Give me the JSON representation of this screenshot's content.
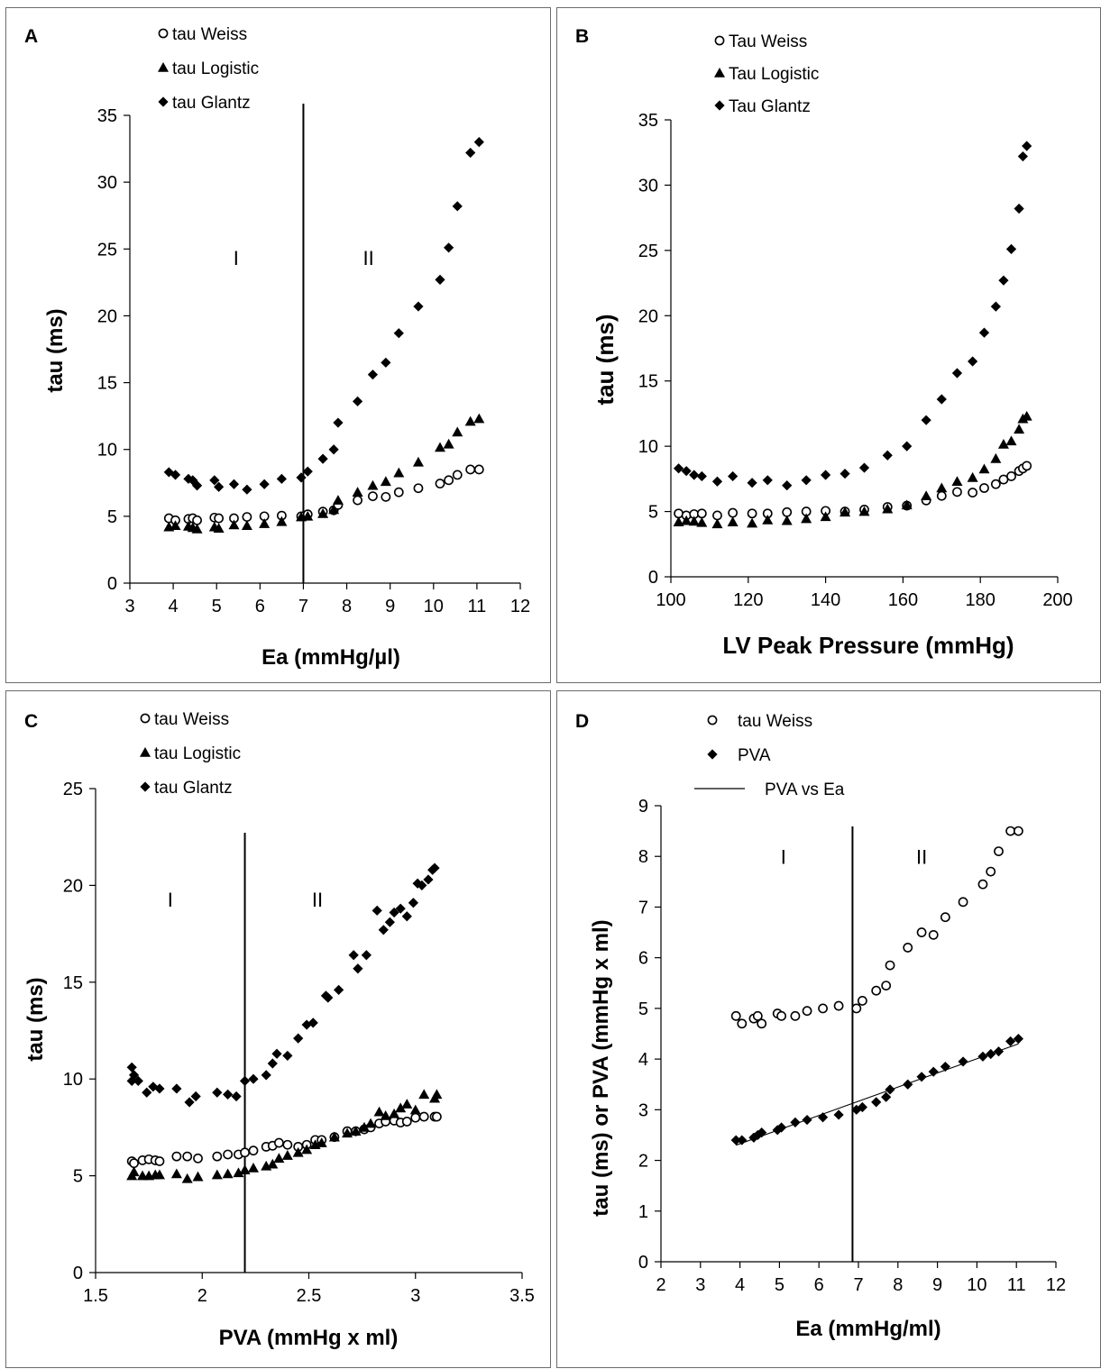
{
  "charts": [
    {
      "type": "scatter",
      "panel_label": "A",
      "xlabel": "Ea (mmHg/µl)",
      "ylabel": "tau (ms)",
      "xlim": [
        3,
        12
      ],
      "ylim": [
        0,
        35
      ],
      "xticks": [
        "3",
        "4",
        "5",
        "6",
        "7",
        "8",
        "9",
        "10",
        "11",
        "12"
      ],
      "yticks": [
        "0",
        "5",
        "10",
        "15",
        "20",
        "25",
        "30",
        "35"
      ],
      "vline_x": 7,
      "regions": [
        {
          "label": "I",
          "x": 5.45,
          "y": 23.8
        },
        {
          "label": "II",
          "x": 8.5,
          "y": 23.8
        }
      ],
      "legend_position": "top-left",
      "series": [
        {
          "name": "tau Weiss",
          "marker": "open-circle",
          "x": [
            3.9,
            4.05,
            4.35,
            4.45,
            4.55,
            4.95,
            5.05,
            5.4,
            5.7,
            6.1,
            6.5,
            6.95,
            7.1,
            7.45,
            7.7,
            7.8,
            8.25,
            8.6,
            8.9,
            9.2,
            9.65,
            10.15,
            10.35,
            10.55,
            10.85,
            11.05
          ],
          "y": [
            4.85,
            4.7,
            4.8,
            4.85,
            4.7,
            4.9,
            4.85,
            4.85,
            4.95,
            5.0,
            5.05,
            5.0,
            5.15,
            5.35,
            5.45,
            5.85,
            6.2,
            6.5,
            6.45,
            6.8,
            7.1,
            7.45,
            7.7,
            8.1,
            8.5,
            8.5
          ]
        },
        {
          "name": "tau Logistic",
          "marker": "triangle",
          "x": [
            3.9,
            4.05,
            4.35,
            4.45,
            4.55,
            4.95,
            5.05,
            5.4,
            5.7,
            6.1,
            6.5,
            6.95,
            7.1,
            7.45,
            7.7,
            7.8,
            8.25,
            8.6,
            8.9,
            9.2,
            9.65,
            10.15,
            10.35,
            10.55,
            10.85,
            11.05
          ],
          "y": [
            4.2,
            4.3,
            4.25,
            4.15,
            4.05,
            4.2,
            4.1,
            4.35,
            4.3,
            4.45,
            4.6,
            4.95,
            5.0,
            5.2,
            5.5,
            6.2,
            6.8,
            7.3,
            7.6,
            8.25,
            9.05,
            10.15,
            10.4,
            11.3,
            12.1,
            12.3
          ]
        },
        {
          "name": "tau Glantz",
          "marker": "diamond",
          "x": [
            3.9,
            4.05,
            4.35,
            4.45,
            4.55,
            4.95,
            5.05,
            5.4,
            5.7,
            6.1,
            6.5,
            6.95,
            7.1,
            7.45,
            7.7,
            7.8,
            8.25,
            8.6,
            8.9,
            9.2,
            9.65,
            10.15,
            10.35,
            10.55,
            10.85,
            11.05
          ],
          "y": [
            8.3,
            8.1,
            7.8,
            7.7,
            7.3,
            7.7,
            7.2,
            7.4,
            7.0,
            7.4,
            7.8,
            7.9,
            8.35,
            9.3,
            10.0,
            12.0,
            13.6,
            15.6,
            16.5,
            18.7,
            20.7,
            22.7,
            25.1,
            28.2,
            32.2,
            33.0
          ]
        }
      ]
    },
    {
      "type": "scatter",
      "panel_label": "B",
      "xlabel": "LV Peak Pressure (mmHg)",
      "ylabel": "tau (ms)",
      "xlim": [
        100,
        200
      ],
      "ylim": [
        0,
        35
      ],
      "xticks": [
        "100",
        "120",
        "140",
        "160",
        "180",
        "200"
      ],
      "yticks": [
        "0",
        "5",
        "10",
        "15",
        "20",
        "25",
        "30",
        "35"
      ],
      "legend_position": "top-left",
      "series": [
        {
          "name": "Tau Weiss",
          "marker": "open-circle",
          "x": [
            102,
            104,
            106,
            108,
            112,
            116,
            121,
            125,
            130,
            135,
            140,
            145,
            150,
            156,
            161,
            166,
            170,
            174,
            178,
            181,
            184,
            186,
            188,
            190,
            191,
            192
          ],
          "y": [
            4.85,
            4.7,
            4.8,
            4.85,
            4.7,
            4.9,
            4.85,
            4.85,
            4.95,
            5.0,
            5.05,
            5.0,
            5.15,
            5.35,
            5.45,
            5.85,
            6.2,
            6.5,
            6.45,
            6.8,
            7.1,
            7.45,
            7.7,
            8.1,
            8.3,
            8.5
          ]
        },
        {
          "name": "Tau Logistic",
          "marker": "triangle",
          "x": [
            102,
            104,
            106,
            108,
            112,
            116,
            121,
            125,
            130,
            135,
            140,
            145,
            150,
            156,
            161,
            166,
            170,
            174,
            178,
            181,
            184,
            186,
            188,
            190,
            191,
            192
          ],
          "y": [
            4.2,
            4.3,
            4.25,
            4.15,
            4.05,
            4.2,
            4.1,
            4.35,
            4.3,
            4.45,
            4.6,
            4.95,
            5.0,
            5.2,
            5.5,
            6.2,
            6.8,
            7.3,
            7.6,
            8.25,
            9.05,
            10.15,
            10.4,
            11.3,
            12.1,
            12.3
          ]
        },
        {
          "name": "Tau Glantz",
          "marker": "diamond",
          "x": [
            102,
            104,
            106,
            108,
            112,
            116,
            121,
            125,
            130,
            135,
            140,
            145,
            150,
            156,
            161,
            166,
            170,
            174,
            178,
            181,
            184,
            186,
            188,
            190,
            191,
            192
          ],
          "y": [
            8.3,
            8.1,
            7.8,
            7.7,
            7.3,
            7.7,
            7.2,
            7.4,
            7.0,
            7.4,
            7.8,
            7.9,
            8.35,
            9.3,
            10.0,
            12.0,
            13.6,
            15.6,
            16.5,
            18.7,
            20.7,
            22.7,
            25.1,
            28.2,
            32.2,
            33.0
          ]
        }
      ]
    },
    {
      "type": "scatter",
      "panel_label": "C",
      "xlabel": "PVA (mmHg x ml)",
      "ylabel": "tau (ms)",
      "xlim": [
        1.5,
        3.5
      ],
      "ylim": [
        0,
        25
      ],
      "xticks": [
        "1.5",
        "2",
        "2.5",
        "3",
        "3.5"
      ],
      "yticks": [
        "0",
        "5",
        "10",
        "15",
        "20",
        "25"
      ],
      "vline_x": 2.2,
      "regions": [
        {
          "label": "I",
          "x": 1.85,
          "y": 18.9
        },
        {
          "label": "II",
          "x": 2.54,
          "y": 18.9
        }
      ],
      "legend_position": "top-left",
      "series": [
        {
          "name": "tau Weiss",
          "marker": "open-circle",
          "x": [
            1.67,
            1.68,
            1.72,
            1.75,
            1.78,
            1.8,
            1.88,
            1.93,
            1.98,
            2.07,
            2.12,
            2.17,
            2.2,
            2.24,
            2.3,
            2.33,
            2.36,
            2.4,
            2.45,
            2.49,
            2.53,
            2.56,
            2.62,
            2.68,
            2.72,
            2.76,
            2.79,
            2.83,
            2.86,
            2.9,
            2.93,
            2.96,
            3.0,
            3.04,
            3.09,
            3.1
          ],
          "y": [
            5.75,
            5.65,
            5.8,
            5.85,
            5.8,
            5.75,
            6.0,
            6.0,
            5.9,
            6.0,
            6.1,
            6.1,
            6.2,
            6.3,
            6.5,
            6.55,
            6.7,
            6.6,
            6.5,
            6.6,
            6.85,
            6.85,
            7.0,
            7.3,
            7.3,
            7.4,
            7.5,
            7.7,
            7.8,
            7.85,
            7.75,
            7.8,
            8.0,
            8.05,
            8.05,
            8.05
          ]
        },
        {
          "name": "tau Logistic",
          "marker": "triangle",
          "x": [
            1.67,
            1.68,
            1.72,
            1.75,
            1.78,
            1.8,
            1.88,
            1.93,
            1.98,
            2.07,
            2.12,
            2.17,
            2.2,
            2.24,
            2.3,
            2.33,
            2.36,
            2.4,
            2.45,
            2.49,
            2.53,
            2.56,
            2.62,
            2.68,
            2.72,
            2.76,
            2.79,
            2.83,
            2.86,
            2.9,
            2.93,
            2.96,
            3.0,
            3.04,
            3.09,
            3.1
          ],
          "y": [
            5.0,
            5.2,
            5.0,
            5.0,
            5.05,
            5.05,
            5.1,
            4.85,
            4.95,
            5.05,
            5.1,
            5.15,
            5.3,
            5.4,
            5.5,
            5.6,
            5.9,
            6.05,
            6.2,
            6.35,
            6.6,
            6.7,
            7.0,
            7.2,
            7.3,
            7.5,
            7.7,
            8.3,
            8.1,
            8.2,
            8.5,
            8.7,
            8.4,
            9.2,
            9.0,
            9.2
          ]
        },
        {
          "name": "tau Glantz",
          "marker": "diamond",
          "x": [
            1.67,
            1.67,
            1.68,
            1.7,
            1.74,
            1.77,
            1.8,
            1.88,
            1.94,
            1.97,
            2.07,
            2.12,
            2.16,
            2.2,
            2.24,
            2.3,
            2.33,
            2.35,
            2.4,
            2.45,
            2.49,
            2.52,
            2.58,
            2.59,
            2.64,
            2.71,
            2.73,
            2.77,
            2.82,
            2.85,
            2.88,
            2.9,
            2.93,
            2.96,
            2.99,
            3.01,
            3.03,
            3.06,
            3.08,
            3.09
          ],
          "y": [
            9.9,
            10.6,
            10.2,
            9.9,
            9.3,
            9.6,
            9.5,
            9.5,
            8.8,
            9.1,
            9.3,
            9.2,
            9.1,
            9.9,
            10.0,
            10.2,
            10.8,
            11.3,
            11.2,
            12.1,
            12.8,
            12.9,
            14.3,
            14.2,
            14.6,
            16.4,
            15.7,
            16.4,
            18.7,
            17.7,
            18.1,
            18.6,
            18.8,
            18.4,
            19.1,
            20.1,
            20.0,
            20.3,
            20.8,
            20.9
          ]
        }
      ]
    },
    {
      "type": "scatter",
      "panel_label": "D",
      "xlabel": "Ea (mmHg/ml)",
      "ylabel": "tau (ms) or PVA (mmHg x ml)",
      "xlim": [
        2,
        12
      ],
      "ylim": [
        0,
        9
      ],
      "xticks": [
        "2",
        "3",
        "4",
        "5",
        "6",
        "7",
        "8",
        "9",
        "10",
        "11",
        "12"
      ],
      "yticks": [
        "0",
        "1",
        "2",
        "3",
        "4",
        "5",
        "6",
        "7",
        "8",
        "9"
      ],
      "vline_x": 6.85,
      "regions": [
        {
          "label": "I",
          "x": 5.1,
          "y": 7.85
        },
        {
          "label": "II",
          "x": 8.6,
          "y": 7.85
        }
      ],
      "legend_position": "top-left",
      "series": [
        {
          "name": "tau Weiss",
          "marker": "open-circle",
          "x": [
            3.9,
            4.05,
            4.35,
            4.45,
            4.55,
            4.95,
            5.05,
            5.4,
            5.7,
            6.1,
            6.5,
            6.95,
            7.1,
            7.45,
            7.7,
            7.8,
            8.25,
            8.6,
            8.9,
            9.2,
            9.65,
            10.15,
            10.35,
            10.55,
            10.85,
            11.05
          ],
          "y": [
            4.85,
            4.7,
            4.8,
            4.85,
            4.7,
            4.9,
            4.85,
            4.85,
            4.95,
            5.0,
            5.05,
            5.0,
            5.15,
            5.35,
            5.45,
            5.85,
            6.2,
            6.5,
            6.45,
            6.8,
            7.1,
            7.45,
            7.7,
            8.1,
            8.5,
            8.5
          ]
        },
        {
          "name": "PVA",
          "marker": "diamond",
          "x": [
            3.9,
            4.05,
            4.35,
            4.45,
            4.55,
            4.95,
            5.05,
            5.4,
            5.7,
            6.1,
            6.5,
            6.95,
            7.1,
            7.45,
            7.7,
            7.8,
            8.25,
            8.6,
            8.9,
            9.2,
            9.65,
            10.15,
            10.35,
            10.55,
            10.85,
            11.05
          ],
          "y": [
            2.4,
            2.4,
            2.45,
            2.5,
            2.55,
            2.6,
            2.65,
            2.75,
            2.8,
            2.85,
            2.9,
            3.0,
            3.05,
            3.15,
            3.25,
            3.4,
            3.5,
            3.65,
            3.75,
            3.85,
            3.95,
            4.05,
            4.1,
            4.15,
            4.35,
            4.4
          ]
        },
        {
          "name": "PVA vs Ea",
          "marker": "line",
          "x": [
            3.9,
            11.05
          ],
          "y": [
            2.3,
            4.3
          ]
        }
      ]
    }
  ]
}
